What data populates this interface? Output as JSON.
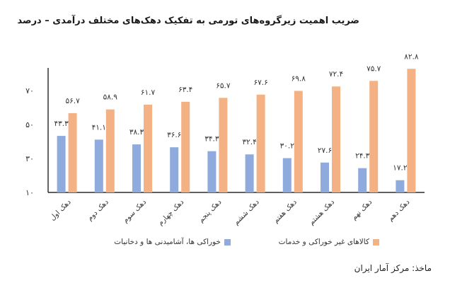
{
  "title": "ضریب اهمیت زیرگروه‌های تورمی به تفکیک دهک‌های مختلف درآمدی – درصد",
  "source": "ماخذ: مرکز آمار ایران",
  "chart_data": {
    "type": "bar",
    "categories": [
      "دهک اول",
      "دهک دوم",
      "دهک سوم",
      "دهک چهارم",
      "دهک پنجم",
      "دهک ششم",
      "دهک هفتم",
      "دهک هشتم",
      "دهک نهم",
      "دهک دهم"
    ],
    "series": [
      {
        "name": "خوراکی ها، آشامیدنی ها  و دخانیات",
        "color": "#8faadc",
        "values": [
          43.3,
          41.1,
          38.3,
          36.6,
          34.3,
          32.4,
          30.2,
          27.6,
          24.3,
          17.2
        ],
        "labels": [
          "۴۳.۳",
          "۴۱.۱",
          "۳۸.۳",
          "۳۶.۶",
          "۳۴.۳",
          "۳۲.۴",
          "۳۰.۲",
          "۲۷.۶",
          "۲۴.۳",
          "۱۷.۲"
        ]
      },
      {
        "name": "کالاهای غیر خوراکی و خدمات",
        "color": "#f4b183",
        "values": [
          56.7,
          58.9,
          61.7,
          63.4,
          65.7,
          67.6,
          69.8,
          72.4,
          75.7,
          82.8
        ],
        "labels": [
          "۵۶.۷",
          "۵۸.۹",
          "۶۱.۷",
          "۶۳.۴",
          "۶۵.۷",
          "۶۷.۶",
          "۶۹.۸",
          "۷۲.۴",
          "۷۵.۷",
          "۸۲.۸"
        ]
      }
    ],
    "yticks": [
      10,
      30,
      50,
      70
    ],
    "ytick_labels": [
      "۱۰",
      "۳۰",
      "۵۰",
      "۷۰"
    ],
    "ylim": [
      10,
      85
    ],
    "grid": false,
    "legend_position": "bottom"
  }
}
